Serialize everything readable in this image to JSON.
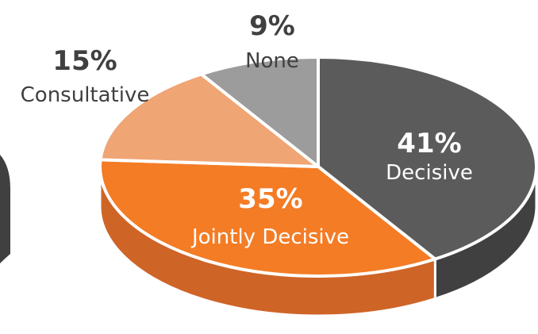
{
  "chart_data": {
    "type": "pie",
    "title": "",
    "style": "3d-tilted",
    "slices": [
      {
        "label": "Decisive",
        "value": 41,
        "value_label": "41%",
        "color": "#5b5b5b",
        "side_color": "#3f403f"
      },
      {
        "label": "Jointly Decisive",
        "value": 35,
        "value_label": "35%",
        "color": "#f47c25",
        "side_color": "#cf6427"
      },
      {
        "label": "Consultative",
        "value": 15,
        "value_label": "15%",
        "color": "#f0a574",
        "side_color": "#d68b5c"
      },
      {
        "label": "None",
        "value": 9,
        "value_label": "9%",
        "color": "#9c9c9c",
        "side_color": "#7d7d7d"
      }
    ],
    "partial_left_edge_color": "#3f403f"
  }
}
